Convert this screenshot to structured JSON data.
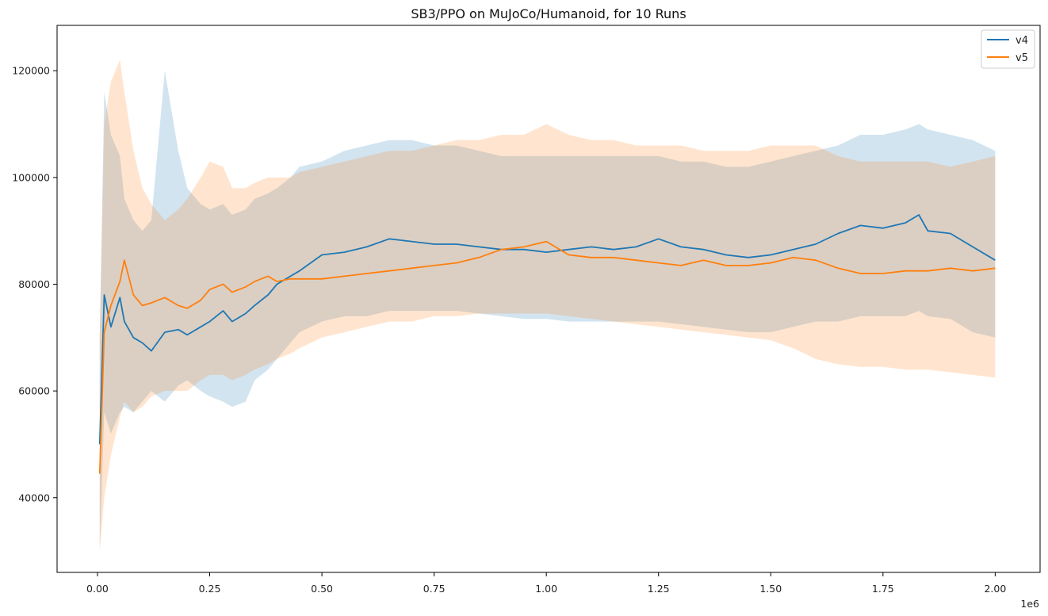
{
  "chart_data": {
    "type": "line",
    "title": "SB3/PPO on MuJoCo/Humanoid, for 10 Runs",
    "xlabel": "",
    "ylabel": "",
    "x_offset_label": "1e6",
    "xlim": [
      -0.09,
      2.1
    ],
    "ylim": [
      26000,
      128500
    ],
    "x_ticks": [
      0.0,
      0.25,
      0.5,
      0.75,
      1.0,
      1.25,
      1.5,
      1.75,
      2.0
    ],
    "x_tick_labels": [
      "0.00",
      "0.25",
      "0.50",
      "0.75",
      "1.00",
      "1.25",
      "1.50",
      "1.75",
      "2.00"
    ],
    "y_ticks": [
      40000,
      60000,
      80000,
      100000,
      120000
    ],
    "y_tick_labels": [
      "40000",
      "60000",
      "80000",
      "100000",
      "120000"
    ],
    "legend_position": "top-right",
    "x": [
      0.005,
      0.015,
      0.03,
      0.05,
      0.06,
      0.08,
      0.1,
      0.12,
      0.15,
      0.18,
      0.2,
      0.23,
      0.25,
      0.28,
      0.3,
      0.33,
      0.35,
      0.38,
      0.4,
      0.43,
      0.45,
      0.5,
      0.55,
      0.6,
      0.65,
      0.7,
      0.75,
      0.8,
      0.85,
      0.9,
      0.95,
      1.0,
      1.05,
      1.1,
      1.15,
      1.2,
      1.25,
      1.3,
      1.35,
      1.4,
      1.45,
      1.5,
      1.55,
      1.6,
      1.65,
      1.7,
      1.75,
      1.8,
      1.83,
      1.85,
      1.9,
      1.95,
      2.0
    ],
    "series": [
      {
        "name": "v4",
        "color": "#1f77b4",
        "values": [
          50000,
          78000,
          72000,
          77500,
          73000,
          70000,
          69000,
          67500,
          71000,
          71500,
          70500,
          72000,
          73000,
          75000,
          73000,
          74500,
          76000,
          78000,
          80000,
          81500,
          82500,
          85500,
          86000,
          87000,
          88500,
          88000,
          87500,
          87500,
          87000,
          86500,
          86500,
          86000,
          86500,
          87000,
          86500,
          87000,
          88500,
          87000,
          86500,
          85500,
          85000,
          85500,
          86500,
          87500,
          89500,
          91000,
          90500,
          91500,
          93000,
          90000,
          89500,
          87000,
          84500
        ],
        "upper": [
          70000,
          116000,
          108000,
          104000,
          96000,
          92000,
          90000,
          92000,
          120000,
          105000,
          98000,
          95000,
          94000,
          95000,
          93000,
          94000,
          96000,
          97000,
          98000,
          100000,
          102000,
          103000,
          105000,
          106000,
          107000,
          107000,
          106000,
          106000,
          105000,
          104000,
          104000,
          104000,
          104000,
          104000,
          104000,
          104000,
          104000,
          103000,
          103000,
          102000,
          102000,
          103000,
          104000,
          105000,
          106000,
          108000,
          108000,
          109000,
          110000,
          109000,
          108000,
          107000,
          105000
        ],
        "lower": [
          30000,
          56000,
          52000,
          56000,
          57000,
          56000,
          58000,
          60000,
          58000,
          61000,
          62000,
          60000,
          59000,
          58000,
          57000,
          58000,
          62000,
          64000,
          66000,
          69000,
          71000,
          73000,
          74000,
          74000,
          75000,
          75000,
          75000,
          75000,
          74500,
          74000,
          73500,
          73500,
          73000,
          73000,
          73000,
          73000,
          73000,
          72500,
          72000,
          71500,
          71000,
          71000,
          72000,
          73000,
          73000,
          74000,
          74000,
          74000,
          75000,
          74000,
          73500,
          71000,
          70000
        ]
      },
      {
        "name": "v5",
        "color": "#ff7f0e",
        "values": [
          44500,
          71000,
          76000,
          80500,
          84500,
          78000,
          76000,
          76500,
          77500,
          76000,
          75500,
          77000,
          79000,
          80000,
          78500,
          79500,
          80500,
          81500,
          80500,
          81000,
          81000,
          81000,
          81500,
          82000,
          82500,
          83000,
          83500,
          84000,
          85000,
          86500,
          87000,
          88000,
          85500,
          85000,
          85000,
          84500,
          84000,
          83500,
          84500,
          83500,
          83500,
          84000,
          85000,
          84500,
          83000,
          82000,
          82000,
          82500,
          82500,
          82500,
          83000,
          82500,
          83000
        ],
        "upper": [
          70000,
          110000,
          118000,
          122000,
          116000,
          105000,
          98000,
          95000,
          92000,
          94000,
          96000,
          100000,
          103000,
          102000,
          98000,
          98000,
          99000,
          100000,
          100000,
          100000,
          101000,
          102000,
          103000,
          104000,
          105000,
          105000,
          106000,
          107000,
          107000,
          108000,
          108000,
          110000,
          108000,
          107000,
          107000,
          106000,
          106000,
          106000,
          105000,
          105000,
          105000,
          106000,
          106000,
          106000,
          104000,
          103000,
          103000,
          103000,
          103000,
          103000,
          102000,
          103000,
          104000
        ],
        "lower": [
          30000,
          40000,
          48000,
          55000,
          58000,
          56000,
          57000,
          59000,
          60000,
          60000,
          60000,
          62000,
          63000,
          63000,
          62000,
          63000,
          64000,
          65000,
          66000,
          67000,
          68000,
          70000,
          71000,
          72000,
          73000,
          73000,
          74000,
          74000,
          74500,
          74500,
          74500,
          74500,
          74000,
          73500,
          73000,
          72500,
          72000,
          71500,
          71000,
          70500,
          70000,
          69500,
          68000,
          66000,
          65000,
          64500,
          64500,
          64000,
          64000,
          64000,
          63500,
          63000,
          62500
        ]
      }
    ]
  }
}
